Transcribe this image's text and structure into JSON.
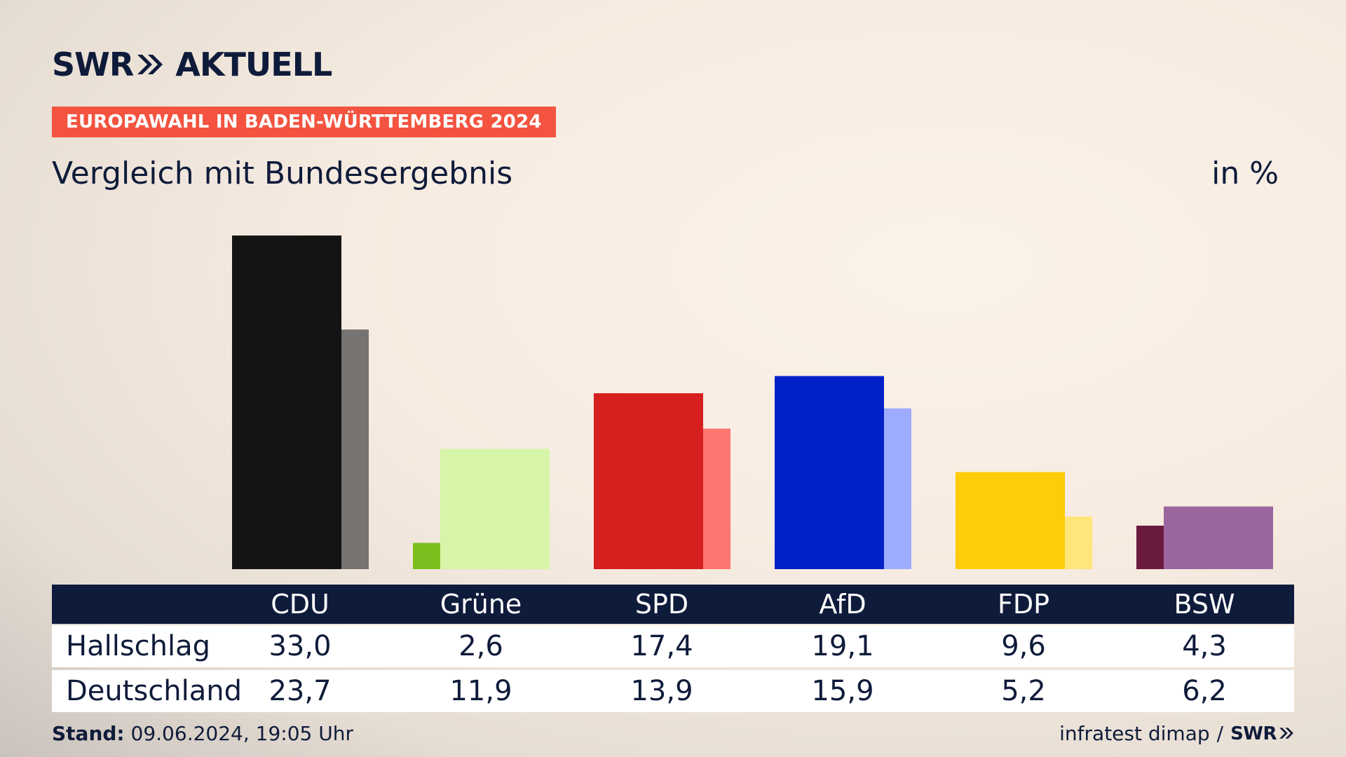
{
  "brand": {
    "logo_text_left": "SWR",
    "logo_text_right": "AKTUELL",
    "mini_logo": "SWR"
  },
  "header": {
    "tag": "EUROPAWAHL IN BADEN-WÜRTTEMBERG 2024",
    "subtitle": "Vergleich mit Bundesergebnis",
    "unit": "in %"
  },
  "footer": {
    "stand_label": "Stand:",
    "stand_value": "09.06.2024, 19:05 Uhr",
    "source": "infratest dimap",
    "separator": "/"
  },
  "chart_data": {
    "type": "bar",
    "categories": [
      "CDU",
      "Grüne",
      "SPD",
      "AfD",
      "FDP",
      "BSW"
    ],
    "series": [
      {
        "name": "Hallschlag",
        "values": [
          33.0,
          2.6,
          17.4,
          19.1,
          9.6,
          4.3
        ]
      },
      {
        "name": "Deutschland",
        "values": [
          23.7,
          11.9,
          13.9,
          15.9,
          5.2,
          6.2
        ]
      }
    ],
    "value_labels": {
      "Hallschlag": [
        "33,0",
        "2,6",
        "17,4",
        "19,1",
        "9,6",
        "4,3"
      ],
      "Deutschland": [
        "23,7",
        "11,9",
        "13,9",
        "15,9",
        "5,2",
        "6,2"
      ]
    },
    "colors": {
      "primary": [
        "#141414",
        "#7bbf1e",
        "#d62020",
        "#0220c8",
        "#ffcc0a",
        "#6a1a3f"
      ],
      "secondary": [
        "#767371",
        "#d7f5a8",
        "#ff7570",
        "#9eacff",
        "#ffe57a",
        "#9b66a0"
      ]
    },
    "ylim": [
      0,
      33
    ],
    "grid": false,
    "legend": "table-bottom"
  }
}
